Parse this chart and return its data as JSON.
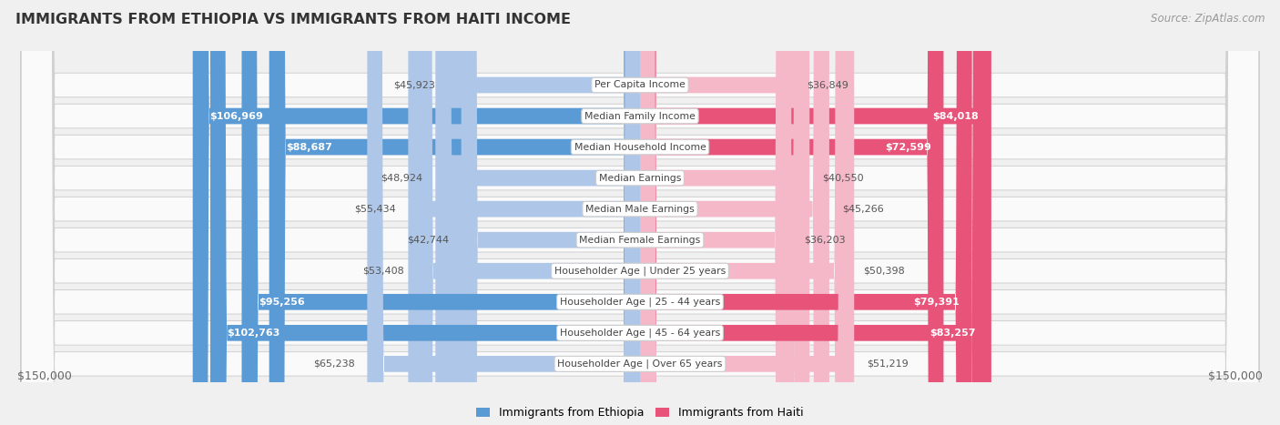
{
  "title": "IMMIGRANTS FROM ETHIOPIA VS IMMIGRANTS FROM HAITI INCOME",
  "source": "Source: ZipAtlas.com",
  "categories": [
    "Per Capita Income",
    "Median Family Income",
    "Median Household Income",
    "Median Earnings",
    "Median Male Earnings",
    "Median Female Earnings",
    "Householder Age | Under 25 years",
    "Householder Age | 25 - 44 years",
    "Householder Age | 45 - 64 years",
    "Householder Age | Over 65 years"
  ],
  "ethiopia_values": [
    45923,
    106969,
    88687,
    48924,
    55434,
    42744,
    53408,
    95256,
    102763,
    65238
  ],
  "haiti_values": [
    36849,
    84018,
    72599,
    40550,
    45266,
    36203,
    50398,
    79391,
    83257,
    51219
  ],
  "ethiopia_color_dark": "#5b9bd5",
  "ethiopia_color_light": "#aec6e8",
  "haiti_color_dark": "#e8537a",
  "haiti_color_light": "#f4b8c8",
  "max_value": 150000,
  "xlabel_left": "$150,000",
  "xlabel_right": "$150,000",
  "legend_ethiopia": "Immigrants from Ethiopia",
  "legend_haiti": "Immigrants from Haiti",
  "background_color": "#f0f0f0",
  "row_background": "#fafafa",
  "row_border": "#d0d0d0",
  "label_box_color": "#ffffff",
  "label_box_border": "#cccccc",
  "eth_dark_threshold": 85000,
  "hai_dark_threshold": 70000
}
